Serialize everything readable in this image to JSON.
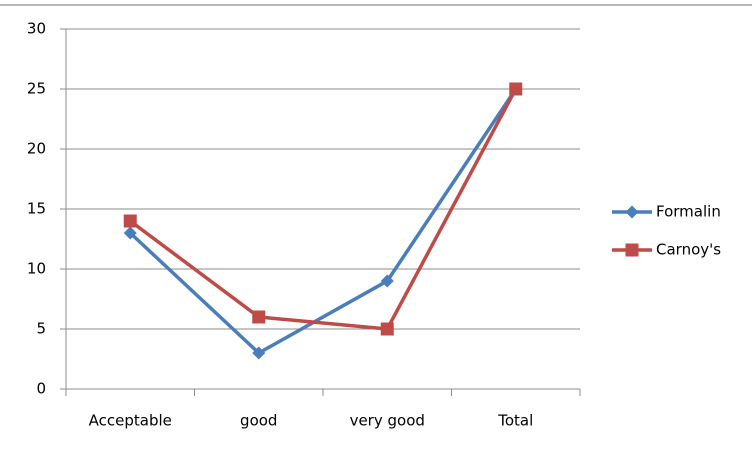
{
  "chart_data": {
    "type": "line",
    "categories": [
      "Acceptable",
      "good",
      "very good",
      "Total"
    ],
    "series": [
      {
        "name": "Formalin",
        "color": "#4a7ebb",
        "marker": "diamond",
        "values": [
          13,
          3,
          9,
          25
        ]
      },
      {
        "name": "Carnoy's",
        "color": "#be4b48",
        "marker": "square",
        "values": [
          14,
          6,
          5,
          25
        ]
      }
    ],
    "ylim": [
      0,
      30
    ],
    "yticks": [
      0,
      5,
      10,
      15,
      20,
      25,
      30
    ],
    "grid": true,
    "legend": "right"
  }
}
